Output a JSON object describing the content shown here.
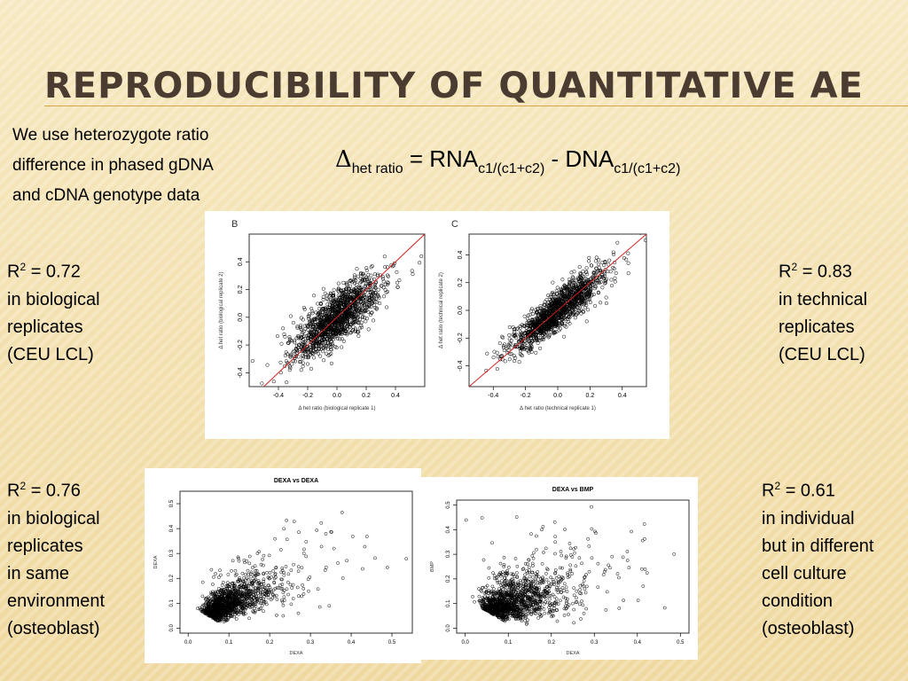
{
  "title": "Reproducibility  of Quantitative AE",
  "intro": {
    "line1": "We use heterozygote ratio",
    "line2": "difference in phased gDNA",
    "line3": "and cDNA genotype data"
  },
  "formula": {
    "delta": "Δ",
    "delta_sub": "het ratio",
    "middle": " = RNA",
    "sub1": "c1/(c1+c2)",
    "minus": " - DNA",
    "sub2": "c1/(c1+c2)"
  },
  "notes": {
    "top_left": {
      "r": "R",
      "sup": "2",
      "value": " = 0.72",
      "lines": [
        "in biological",
        "replicates",
        "(CEU LCL)"
      ]
    },
    "top_right": {
      "r": "R",
      "sup": "2",
      "value": " = 0.83",
      "lines": [
        "in technical",
        "replicates",
        "(CEU LCL)"
      ]
    },
    "bottom_left": {
      "r": "R",
      "sup": "2",
      "value": " = 0.76",
      "lines": [
        "in biological",
        "replicates",
        "in same",
        "environment",
        "(osteoblast)"
      ]
    },
    "bottom_right": {
      "r": "R",
      "sup": "2",
      "value": " = 0.61",
      "lines": [
        "in individual",
        "but in different",
        "cell culture",
        "condition",
        "(osteoblast)"
      ]
    }
  },
  "colors": {
    "title": "#4a3c31",
    "rule": "#d8a64a",
    "fit_line": "#d62020"
  },
  "chart_data": [
    {
      "type": "scatter",
      "panel_label": "B",
      "title": "",
      "xlabel": "Δ het ratio (biological replicate 1)",
      "ylabel": "Δ het ratio (biological replicate 2)",
      "xlim": [
        -0.6,
        0.6
      ],
      "ylim": [
        -0.5,
        0.6
      ],
      "xticks": [
        "-0.4",
        "-0.2",
        "0.0",
        "0.2",
        "0.4"
      ],
      "yticks": [
        "-0.4",
        "-0.2",
        "0.0",
        "0.2",
        "0.4"
      ],
      "r2": 0.72,
      "fit_line": true,
      "center": [
        0.0,
        0.0
      ],
      "spread_along": 0.2,
      "spread_across": 0.07,
      "grid": false
    },
    {
      "type": "scatter",
      "panel_label": "C",
      "title": "",
      "xlabel": "Δ het ratio (technical replicate 1)",
      "ylabel": "Δ het ratio (technical replicate 2)",
      "xlim": [
        -0.55,
        0.55
      ],
      "ylim": [
        -0.55,
        0.55
      ],
      "xticks": [
        "-0.4",
        "-0.2",
        "0.0",
        "0.2",
        "0.4"
      ],
      "yticks": [
        "-0.4",
        "-0.2",
        "0.0",
        "0.2",
        "0.4"
      ],
      "r2": 0.83,
      "fit_line": true,
      "center": [
        0.0,
        0.0
      ],
      "spread_along": 0.2,
      "spread_across": 0.05,
      "grid": false
    },
    {
      "type": "scatter",
      "panel_label": "",
      "title": "DEXA vs DEXA",
      "xlabel": "DEXA",
      "ylabel": "DEXA",
      "xlim": [
        -0.02,
        0.55
      ],
      "ylim": [
        -0.02,
        0.55
      ],
      "xticks": [
        "0.0",
        "0.1",
        "0.2",
        "0.3",
        "0.4",
        "0.5"
      ],
      "yticks": [
        "0.0",
        "0.1",
        "0.2",
        "0.3",
        "0.4",
        "0.5"
      ],
      "r2": 0.76,
      "fit_line": false,
      "center": [
        0.05,
        0.05
      ],
      "spread_along": 0.09,
      "spread_across": 0.03,
      "grid": false
    },
    {
      "type": "scatter",
      "panel_label": "",
      "title": "DEXA vs BMP",
      "xlabel": "DEXA",
      "ylabel": "BMP",
      "xlim": [
        -0.02,
        0.52
      ],
      "ylim": [
        -0.02,
        0.52
      ],
      "xticks": [
        "0.0",
        "0.1",
        "0.2",
        "0.3",
        "0.4",
        "0.5"
      ],
      "yticks": [
        "0.0",
        "0.1",
        "0.2",
        "0.3",
        "0.4",
        "0.5"
      ],
      "r2": 0.61,
      "fit_line": false,
      "center": [
        0.06,
        0.06
      ],
      "spread_along": 0.1,
      "spread_across": 0.045,
      "grid": false
    }
  ]
}
